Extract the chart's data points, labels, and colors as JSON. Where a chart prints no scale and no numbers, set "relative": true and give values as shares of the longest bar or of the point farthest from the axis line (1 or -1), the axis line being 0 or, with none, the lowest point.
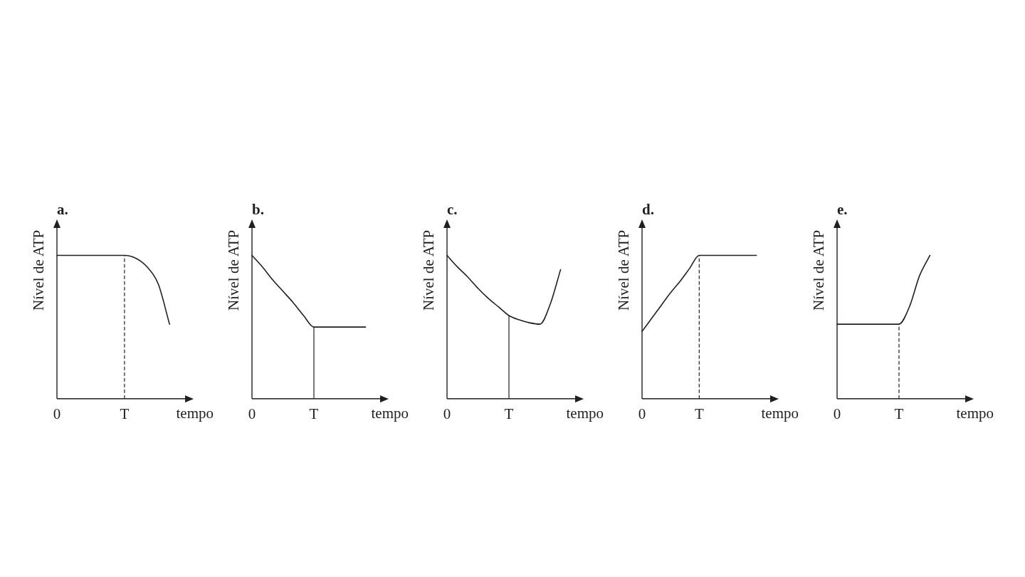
{
  "chart_data": [
    {
      "type": "line",
      "title": "a.",
      "xlabel": "tempo",
      "ylabel": "Nível de ATP",
      "relative": true,
      "grid": false,
      "legend": false,
      "marker": "none",
      "line_style": "solid",
      "categories": [
        "0",
        null,
        null,
        null,
        null,
        null,
        "T",
        null,
        null,
        null,
        null,
        null
      ],
      "series": [
        {
          "color": "#231f20",
          "values": [
            1,
            1,
            1,
            1,
            1,
            1,
            1,
            0.98,
            0.92,
            0.8,
            0.52,
            null
          ]
        }
      ],
      "ref_lines": [
        {
          "axis": "x",
          "value": "T",
          "color": "#231f20",
          "line_style": "dashed"
        }
      ]
    },
    {
      "type": "line",
      "title": "b.",
      "xlabel": "tempo",
      "ylabel": "Nível de ATP",
      "relative": true,
      "grid": false,
      "legend": false,
      "marker": "none",
      "line_style": "solid",
      "categories": [
        "0",
        null,
        null,
        null,
        null,
        null,
        "T",
        null,
        null,
        null,
        null,
        null,
        null
      ],
      "series": [
        {
          "color": "#231f20",
          "values": [
            1,
            0.92,
            0.83,
            0.75,
            0.67,
            0.58,
            0.5,
            0.5,
            0.5,
            0.5,
            0.5,
            0.5,
            null
          ]
        }
      ],
      "ref_lines": [
        {
          "axis": "x",
          "value": "T",
          "color": "#231f20",
          "line_style": "solid"
        }
      ]
    },
    {
      "type": "line",
      "title": "c.",
      "xlabel": "tempo",
      "ylabel": "Nível de ATP",
      "relative": true,
      "grid": false,
      "legend": false,
      "marker": "none",
      "line_style": "solid",
      "categories": [
        "0",
        null,
        null,
        null,
        null,
        null,
        "T",
        null,
        null,
        null,
        null,
        null,
        null
      ],
      "series": [
        {
          "color": "#231f20",
          "values": [
            1,
            0.92,
            0.85,
            0.77,
            0.7,
            0.64,
            0.58,
            0.55,
            0.53,
            0.52,
            0.66,
            0.9,
            null
          ]
        }
      ],
      "ref_lines": [
        {
          "axis": "x",
          "value": "T",
          "color": "#231f20",
          "line_style": "solid"
        }
      ]
    },
    {
      "type": "line",
      "title": "d.",
      "xlabel": "tempo",
      "ylabel": "Nível de ATP",
      "relative": true,
      "grid": false,
      "legend": false,
      "marker": "none",
      "line_style": "solid",
      "categories": [
        "0",
        null,
        null,
        null,
        null,
        null,
        "T",
        null,
        null,
        null,
        null,
        null,
        null,
        null
      ],
      "series": [
        {
          "color": "#231f20",
          "values": [
            0.47,
            0.56,
            0.65,
            0.74,
            0.82,
            0.91,
            1,
            1,
            1,
            1,
            1,
            1,
            1,
            null
          ]
        }
      ],
      "ref_lines": [
        {
          "axis": "x",
          "value": "T",
          "color": "#231f20",
          "line_style": "dashed"
        }
      ]
    },
    {
      "type": "line",
      "title": "e.",
      "xlabel": "tempo",
      "ylabel": "Nível de ATP",
      "relative": true,
      "grid": false,
      "legend": false,
      "marker": "none",
      "line_style": "solid",
      "categories": [
        "0",
        null,
        null,
        null,
        null,
        null,
        "T",
        null,
        null,
        null,
        null,
        null,
        null
      ],
      "series": [
        {
          "color": "#231f20",
          "values": [
            0.52,
            0.52,
            0.52,
            0.52,
            0.52,
            0.52,
            0.52,
            0.64,
            0.86,
            1,
            null,
            null,
            null
          ]
        }
      ],
      "ref_lines": [
        {
          "axis": "x",
          "value": "T",
          "color": "#231f20",
          "line_style": "dashed"
        }
      ]
    }
  ]
}
